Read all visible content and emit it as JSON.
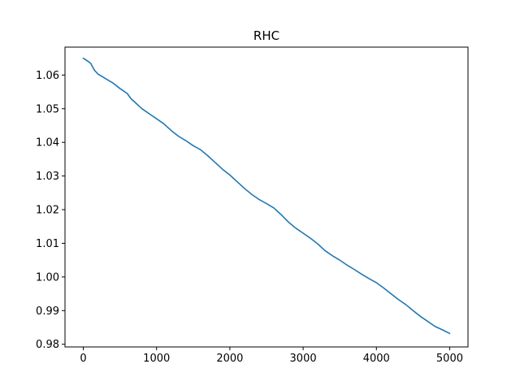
{
  "chart_data": {
    "type": "line",
    "title": "RHC",
    "xlabel": "",
    "ylabel": "",
    "xlim": [
      -250,
      5250
    ],
    "ylim": [
      0.9792,
      1.0683
    ],
    "xticks": [
      0,
      1000,
      2000,
      3000,
      4000,
      5000
    ],
    "xtick_labels": [
      "0",
      "1000",
      "2000",
      "3000",
      "4000",
      "5000"
    ],
    "yticks": [
      0.98,
      0.99,
      1.0,
      1.01,
      1.02,
      1.03,
      1.04,
      1.05,
      1.06
    ],
    "ytick_labels": [
      "0.98",
      "0.99",
      "1.00",
      "1.01",
      "1.02",
      "1.03",
      "1.04",
      "1.05",
      "1.06"
    ],
    "grid": false,
    "series": [
      {
        "color": "#1f77b4",
        "x": [
          0,
          50,
          100,
          150,
          200,
          300,
          400,
          500,
          600,
          650,
          700,
          800,
          900,
          1000,
          1100,
          1200,
          1300,
          1400,
          1500,
          1600,
          1700,
          1800,
          1900,
          2000,
          2100,
          2200,
          2300,
          2400,
          2500,
          2600,
          2700,
          2800,
          2900,
          3000,
          3100,
          3200,
          3300,
          3400,
          3500,
          3600,
          3700,
          3800,
          3900,
          4000,
          4100,
          4200,
          4300,
          4400,
          4500,
          4600,
          4700,
          4800,
          4900,
          5000
        ],
        "y": [
          1.065,
          1.0643,
          1.0635,
          1.0615,
          1.0603,
          1.059,
          1.0577,
          1.056,
          1.0545,
          1.053,
          1.052,
          1.05,
          1.0485,
          1.047,
          1.0455,
          1.0435,
          1.0418,
          1.0405,
          1.039,
          1.0378,
          1.036,
          1.034,
          1.032,
          1.0303,
          1.0283,
          1.0263,
          1.0245,
          1.023,
          1.0218,
          1.0205,
          1.0185,
          1.0163,
          1.0145,
          1.013,
          1.0115,
          1.0098,
          1.0078,
          1.0063,
          1.005,
          1.0035,
          1.0022,
          1.0008,
          0.9995,
          0.9983,
          0.9967,
          0.995,
          0.9933,
          0.9918,
          0.99,
          0.9883,
          0.9868,
          0.9853,
          0.9843,
          0.9832
        ]
      }
    ]
  }
}
